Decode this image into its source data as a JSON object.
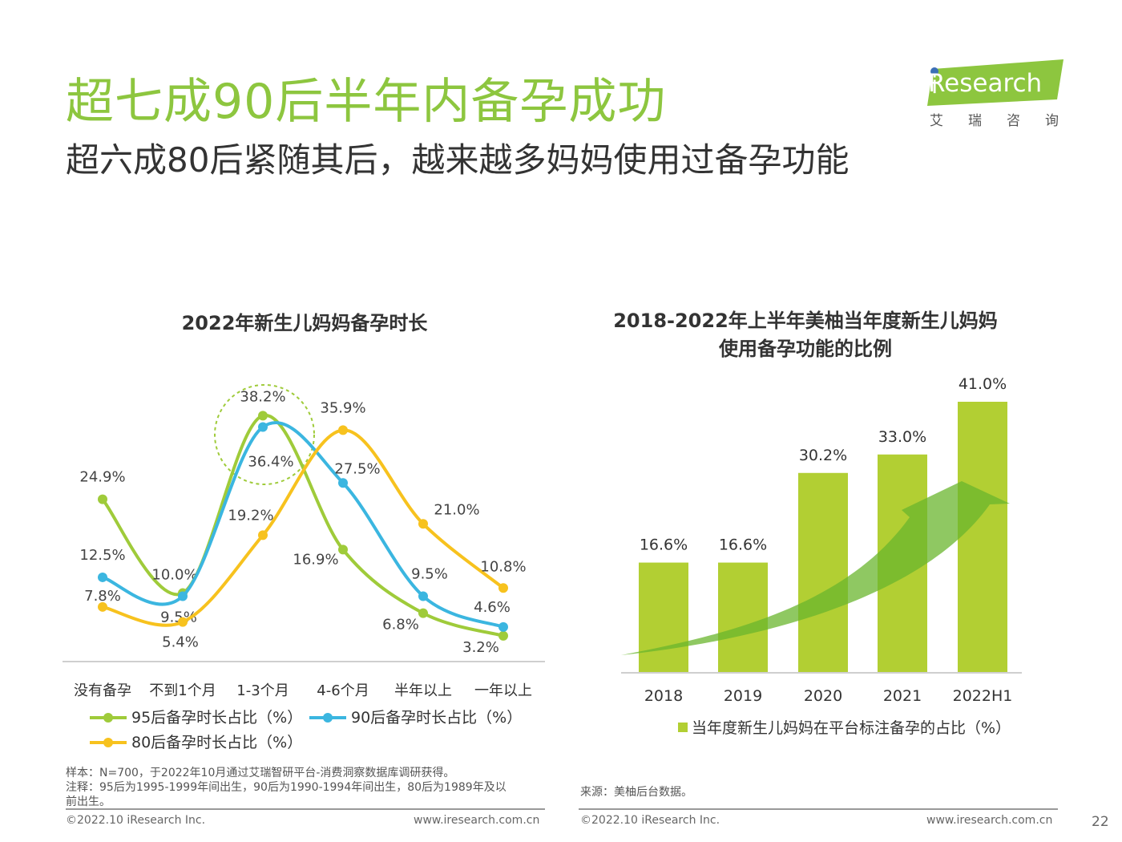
{
  "header": {
    "title": "超七成90后半年内备孕成功",
    "subtitle": "超六成80后紧随其后，越来越多妈妈使用过备孕功能",
    "logo_i": "i",
    "logo_word": "Research",
    "logo_cn": "艾瑞咨询"
  },
  "chart_data": [
    {
      "type": "line",
      "title": "2022年新生儿妈妈备孕时长",
      "categories": [
        "没有备孕",
        "不到1个月",
        "1-3个月",
        "4-6个月",
        "半年以上",
        "一年以上"
      ],
      "series": [
        {
          "name": "95后备孕时长占比（%）",
          "values": [
            24.9,
            10.0,
            38.2,
            16.9,
            6.8,
            3.2
          ],
          "labels": [
            "24.9%",
            "10.0%",
            "38.2%",
            "16.9%",
            "6.8%",
            "3.2%"
          ],
          "color": "#9fcb3a"
        },
        {
          "name": "90后备孕时长占比（%）",
          "values": [
            12.5,
            9.5,
            36.4,
            27.5,
            9.5,
            4.6
          ],
          "labels": [
            "12.5%",
            "9.5%",
            "36.4%",
            "27.5%",
            "9.5%",
            "4.6%"
          ],
          "color": "#3bb6e0"
        },
        {
          "name": "80后备孕时长占比（%）",
          "values": [
            7.8,
            5.4,
            19.2,
            35.9,
            21.0,
            10.8
          ],
          "labels": [
            "7.8%",
            "5.4%",
            "19.2%",
            "35.9%",
            "21.0%",
            "10.8%"
          ],
          "color": "#f7c21e"
        }
      ],
      "ylim": [
        0,
        45
      ],
      "grid": false,
      "legend": "bottom"
    },
    {
      "type": "bar",
      "title": "2018-2022年上半年美柚当年度新生儿妈妈使用备孕功能的比例",
      "title_line1": "2018-2022年上半年美柚当年度新生儿妈妈",
      "title_line2": "使用备孕功能的比例",
      "categories": [
        "2018",
        "2019",
        "2020",
        "2021",
        "2022H1"
      ],
      "values": [
        16.6,
        16.6,
        30.2,
        33.0,
        41.0
      ],
      "labels": [
        "16.6%",
        "16.6%",
        "30.2%",
        "33.0%",
        "41.0%"
      ],
      "series_name": "当年度新生儿妈妈在平台标注备孕的占比（%）",
      "color": "#b2cf33",
      "ylim": [
        0,
        41
      ],
      "legend": "bottom"
    }
  ],
  "notes": {
    "sample": "样本：N=700，于2022年10月通过艾瑞智研平台-消费洞察数据库调研获得。",
    "note_line1": "注释：95后为1995-1999年间出生，90后为1990-1994年间出生，80后为1989年及以",
    "note_line2": "前出生。",
    "source": "来源：美柚后台数据。"
  },
  "footer": {
    "copyright_left": "©2022.10 iResearch Inc.",
    "url_left": "www.iresearch.com.cn",
    "copyright_right": "©2022.10 iResearch Inc.",
    "url_right": "www.iresearch.com.cn",
    "page_number": "22"
  },
  "colors": {
    "brand_green": "#8dc63f",
    "series_95": "#9fcb3a",
    "series_90": "#3bb6e0",
    "series_80": "#f7c21e",
    "bar": "#b2cf33",
    "arrow": "#6ab62e"
  }
}
